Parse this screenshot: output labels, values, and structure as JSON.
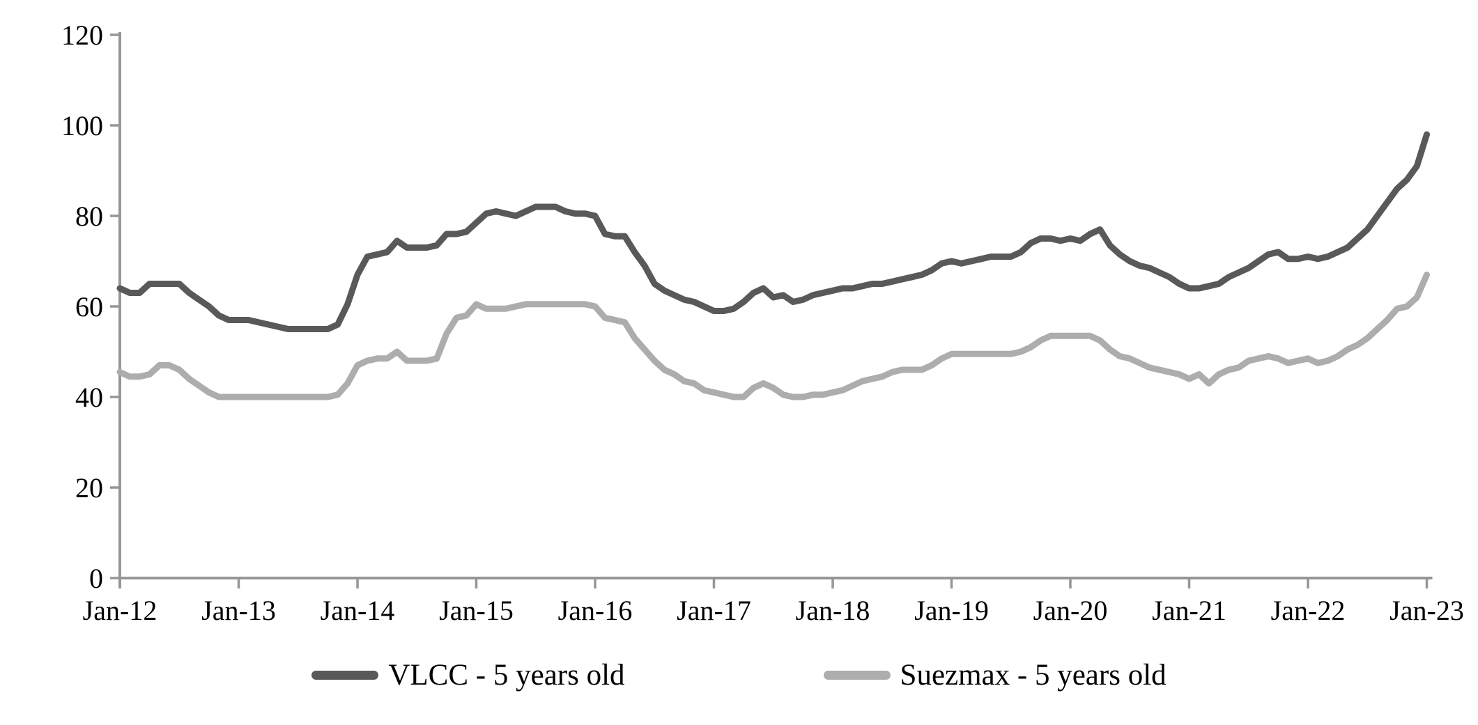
{
  "chart_data": {
    "type": "line",
    "title": "",
    "background": "#FFFFFF",
    "axis_color": "#969696",
    "text_color": "#000000",
    "grid": false,
    "legend_position": "bottom-center",
    "ylim": [
      0,
      120
    ],
    "y_ticks": [
      0,
      20,
      40,
      60,
      80,
      100,
      120
    ],
    "x_tick_labels": [
      "Jan-12",
      "Jan-13",
      "Jan-14",
      "Jan-15",
      "Jan-16",
      "Jan-17",
      "Jan-18",
      "Jan-19",
      "Jan-20",
      "Jan-21",
      "Jan-22",
      "Jan-23"
    ],
    "x_unit": "monthly points from Jan-12 to Jan-23",
    "series": [
      {
        "name": "VLCC - 5 years old",
        "color": "#595959",
        "values": [
          64,
          63,
          63,
          65,
          65,
          65,
          65,
          63,
          61.5,
          60,
          58,
          57,
          57,
          57,
          56.5,
          56,
          55.5,
          55,
          55,
          55,
          55,
          55,
          56,
          60.5,
          67,
          71,
          71.5,
          72,
          74.5,
          73,
          73,
          73,
          73.5,
          76,
          76,
          76.5,
          78.5,
          80.5,
          81,
          80.5,
          80,
          81,
          82,
          82,
          82,
          81,
          80.5,
          80.5,
          80,
          76,
          75.5,
          75.5,
          72,
          69,
          65,
          63.5,
          62.5,
          61.5,
          61,
          60,
          59,
          59,
          59.5,
          61,
          63,
          64,
          62,
          62.5,
          61,
          61.5,
          62.5,
          63,
          63.5,
          64,
          64,
          64.5,
          65,
          65,
          65.5,
          66,
          66.5,
          67,
          68,
          69.5,
          70,
          69.5,
          70,
          70.5,
          71,
          71,
          71,
          72,
          74,
          75,
          75,
          74.5,
          75,
          74.5,
          76,
          77,
          73.5,
          71.5,
          70,
          69,
          68.5,
          67.5,
          66.5,
          65,
          64,
          64,
          64.5,
          65,
          66.5,
          67.5,
          68.5,
          70,
          71.5,
          72,
          70.5,
          70.5,
          71,
          70.5,
          71,
          72,
          73,
          75,
          77,
          80,
          83,
          86,
          88,
          91,
          98
        ]
      },
      {
        "name": "Suezmax - 5 years old",
        "color": "#ADADAD",
        "values": [
          45.5,
          44.5,
          44.5,
          45,
          47,
          47,
          46,
          44,
          42.5,
          41,
          40,
          40,
          40,
          40,
          40,
          40,
          40,
          40,
          40,
          40,
          40,
          40,
          40.5,
          43,
          47,
          48,
          48.5,
          48.5,
          50,
          48,
          48,
          48,
          48.5,
          54,
          57.5,
          58,
          60.5,
          59.5,
          59.5,
          59.5,
          60,
          60.5,
          60.5,
          60.5,
          60.5,
          60.5,
          60.5,
          60.5,
          60,
          57.5,
          57,
          56.5,
          53,
          50.5,
          48,
          46,
          45,
          43.5,
          43,
          41.5,
          41,
          40.5,
          40,
          40,
          42,
          43,
          42,
          40.5,
          40,
          40,
          40.5,
          40.5,
          41,
          41.5,
          42.5,
          43.5,
          44,
          44.5,
          45.5,
          46,
          46,
          46,
          47,
          48.5,
          49.5,
          49.5,
          49.5,
          49.5,
          49.5,
          49.5,
          49.5,
          50,
          51,
          52.5,
          53.5,
          53.5,
          53.5,
          53.5,
          53.5,
          52.5,
          50.5,
          49,
          48.5,
          47.5,
          46.5,
          46,
          45.5,
          45,
          44,
          45,
          43,
          45,
          46,
          46.5,
          48,
          48.5,
          49,
          48.5,
          47.5,
          48,
          48.5,
          47.5,
          48,
          49,
          50.5,
          51.5,
          53,
          55,
          57,
          59.5,
          60,
          62,
          67
        ]
      }
    ]
  }
}
